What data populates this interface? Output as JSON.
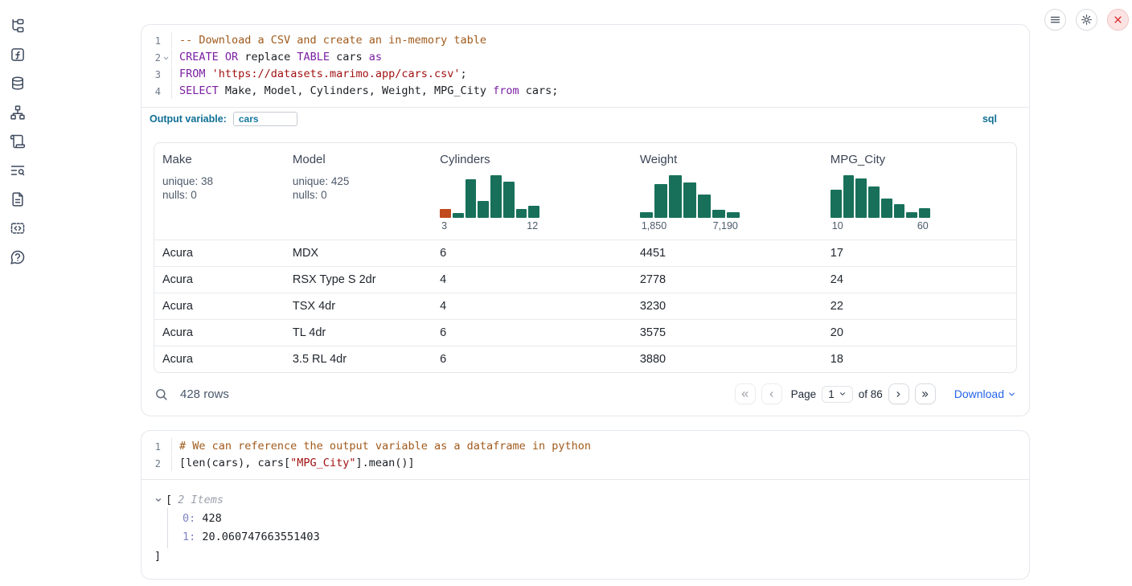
{
  "colors": {
    "accent": "#0f6f94",
    "link_blue": "#2563eb",
    "histogram_green": "#18705a",
    "histogram_orange": "#c04a1d",
    "keyword": "#7a1fa2",
    "string": "#a11111",
    "comment": "#a05a1c",
    "close_button_red": "#dc2626"
  },
  "topbar": {
    "icons": [
      "menu-icon",
      "settings-icon",
      "shutdown-icon"
    ]
  },
  "sidebar": {
    "icons": [
      "file-tree-icon",
      "function-icon",
      "database-icon",
      "dependency-graph-icon",
      "scroll-icon",
      "search-list-icon",
      "document-icon",
      "snippets-icon",
      "help-icon"
    ]
  },
  "sql_cell": {
    "language_badge": "sql",
    "output_variable_label": "Output variable:",
    "output_variable_value": "cars",
    "lines": [
      {
        "num": "1",
        "fold": false,
        "tokens": [
          [
            "comment",
            "-- Download a CSV and create an in-memory table"
          ]
        ]
      },
      {
        "num": "2",
        "fold": true,
        "tokens": [
          [
            "keyword",
            "CREATE"
          ],
          [
            "plain",
            " "
          ],
          [
            "keyword",
            "OR"
          ],
          [
            "plain",
            " replace "
          ],
          [
            "keyword",
            "TABLE"
          ],
          [
            "plain",
            " cars "
          ],
          [
            "keyword",
            "as"
          ]
        ]
      },
      {
        "num": "3",
        "fold": false,
        "tokens": [
          [
            "keyword",
            "FROM"
          ],
          [
            "plain",
            " "
          ],
          [
            "string",
            "'https://datasets.marimo.app/cars.csv'"
          ],
          [
            "plain",
            ";"
          ]
        ]
      },
      {
        "num": "4",
        "fold": false,
        "tokens": [
          [
            "keyword",
            "SELECT"
          ],
          [
            "plain",
            " Make, Model, Cylinders, Weight, MPG_City "
          ],
          [
            "keyword",
            "from"
          ],
          [
            "plain",
            " cars;"
          ]
        ]
      }
    ]
  },
  "chart_data": [
    {
      "type": "bar",
      "title": "Cylinders",
      "values": [
        20,
        10,
        85,
        38,
        95,
        80,
        20,
        26
      ],
      "value_note": "relative bin heights, % of max",
      "x_range": [
        3,
        12
      ],
      "tick_labels": [
        "3",
        "12"
      ],
      "bar_color": "#18705a",
      "highlight": {
        "index": 0,
        "color": "#c04a1d"
      },
      "grid": false,
      "legend": false
    },
    {
      "type": "bar",
      "title": "Weight",
      "values": [
        13,
        75,
        95,
        78,
        52,
        18,
        12
      ],
      "value_note": "relative bin heights, % of max",
      "x_range": [
        1850,
        7190
      ],
      "tick_labels": [
        "1,850",
        "7,190"
      ],
      "bar_color": "#18705a",
      "grid": false,
      "legend": false
    },
    {
      "type": "bar",
      "title": "MPG_City",
      "values": [
        62,
        95,
        88,
        70,
        42,
        30,
        13,
        22
      ],
      "value_note": "relative bin heights, % of max",
      "x_range": [
        10,
        60
      ],
      "tick_labels": [
        "10",
        "60"
      ],
      "bar_color": "#18705a",
      "grid": false,
      "legend": false
    }
  ],
  "table": {
    "columns": [
      {
        "name": "Make",
        "stats": [
          "unique: 38",
          "nulls: 0"
        ]
      },
      {
        "name": "Model",
        "stats": [
          "unique: 425",
          "nulls: 0"
        ]
      },
      {
        "name": "Cylinders",
        "chart": 0
      },
      {
        "name": "Weight",
        "chart": 1
      },
      {
        "name": "MPG_City",
        "chart": 2
      }
    ],
    "rows": [
      [
        "Acura",
        "MDX",
        "6",
        "4451",
        "17"
      ],
      [
        "Acura",
        "RSX Type S 2dr",
        "4",
        "2778",
        "24"
      ],
      [
        "Acura",
        "TSX 4dr",
        "4",
        "3230",
        "22"
      ],
      [
        "Acura",
        "TL 4dr",
        "6",
        "3575",
        "20"
      ],
      [
        "Acura",
        "3.5 RL 4dr",
        "6",
        "3880",
        "18"
      ]
    ],
    "footer": {
      "rows_text": "428 rows",
      "page_label": "Page",
      "page_value": "1",
      "of_text": "of 86",
      "download_label": "Download"
    }
  },
  "python_cell": {
    "lines": [
      {
        "num": "1",
        "fold": false,
        "tokens": [
          [
            "comment",
            "# We can reference the output variable as a dataframe in python"
          ]
        ]
      },
      {
        "num": "2",
        "fold": false,
        "tokens": [
          [
            "plain",
            "[len(cars), cars["
          ],
          [
            "string",
            "\"MPG_City\""
          ],
          [
            "plain",
            "].mean()]"
          ]
        ]
      }
    ]
  },
  "output_tree": {
    "open_bracket": "[",
    "items_label": "2 Items",
    "entries": [
      {
        "key": "0:",
        "value": "428"
      },
      {
        "key": "1:",
        "value": "20.060747663551403"
      }
    ],
    "close_bracket": "]"
  }
}
